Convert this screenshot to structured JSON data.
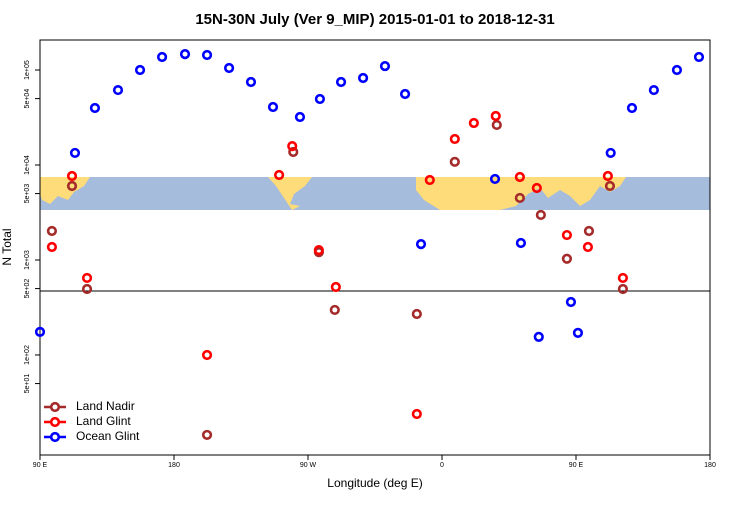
{
  "chart_data": {
    "type": "scatter",
    "title": "15N-30N July (Ver 9_MIP)   2015-01-01 to 2018-12-31",
    "x_label": "Longitude (deg E)",
    "y_label": "N Total",
    "xlim": [
      90,
      540
    ],
    "ylim": [
      8.85,
      207000
    ],
    "log_y": true,
    "xticks": [
      {
        "value": 90,
        "label": "90 E"
      },
      {
        "value": 180,
        "label": "180"
      },
      {
        "value": 270,
        "label": "90 W"
      },
      {
        "value": 360,
        "label": "0"
      },
      {
        "value": 450,
        "label": "90 E"
      },
      {
        "value": 540,
        "label": "180"
      }
    ],
    "yticks": [
      {
        "value": 50,
        "label": "5e+01"
      },
      {
        "value": 100,
        "label": "1e+02"
      },
      {
        "value": 500,
        "label": "5e+02"
      },
      {
        "value": 1000,
        "label": "1e+03"
      },
      {
        "value": 5000,
        "label": "5e+03"
      },
      {
        "value": 10000,
        "label": "1e+04"
      },
      {
        "value": 50000,
        "label": "5e+04"
      },
      {
        "value": 100000,
        "label": "1e+05"
      }
    ],
    "legend": "bottom-left",
    "series": [
      {
        "name": "Land Nadir",
        "color": "#a52a2a",
        "x": [
          98,
          111.5,
          121.6,
          202.2,
          260.1,
          277.3,
          288,
          343.1,
          368.6,
          396.8,
          412.3,
          426.4,
          443.9,
          458.7,
          472.8,
          481.5
        ],
        "values": [
          2020,
          6010,
          495,
          14.4,
          13700,
          1210,
          298,
          270,
          10800,
          26400,
          4500,
          2980,
          1030,
          2020,
          6010,
          495
        ]
      },
      {
        "name": "Land Glint",
        "color": "#ff0000",
        "x": [
          98,
          111.5,
          121.6,
          202.2,
          250.6,
          259.4,
          277.3,
          288.7,
          343.1,
          351.8,
          368.6,
          381.4,
          396.1,
          412.3,
          423.7,
          443.9,
          458,
          471.4,
          481.5
        ],
        "values": [
          1370,
          7660,
          647,
          100,
          7850,
          15800,
          1270,
          520,
          23.9,
          6950,
          18800,
          27700,
          32800,
          7480,
          5730,
          1830,
          1370,
          7660,
          647
        ]
      },
      {
        "name": "Ocean Glint",
        "color": "#0000ff",
        "x": [
          90,
          113.5,
          126.9,
          142.4,
          157.2,
          172,
          187.4,
          202.2,
          217,
          231.7,
          246.5,
          264.6,
          278,
          292.2,
          307,
          321.7,
          335.2,
          345.9,
          395.6,
          413,
          425,
          446.6,
          451.3,
          473.3,
          487.6,
          502.3,
          517.8,
          532.6
        ],
        "values": [
          175,
          13400,
          39800,
          61500,
          100000,
          137000,
          147000,
          144000,
          105000,
          74800,
          40800,
          32000,
          49500,
          74800,
          82400,
          110000,
          55900,
          1470,
          7130,
          1510,
          155,
          361,
          171,
          13400,
          39800,
          61500,
          100000,
          137000
        ]
      }
    ]
  }
}
